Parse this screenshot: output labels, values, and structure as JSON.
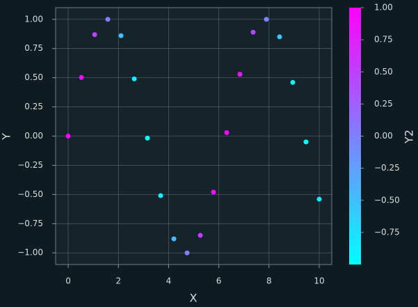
{
  "chart_data": {
    "type": "scatter",
    "xlabel": "X",
    "ylabel": "Y",
    "x": [
      0,
      0.526,
      1.053,
      1.579,
      2.105,
      2.632,
      3.158,
      3.684,
      4.211,
      4.737,
      5.263,
      5.789,
      6.316,
      6.842,
      7.368,
      7.895,
      8.421,
      8.947,
      9.474,
      10
    ],
    "values": [
      0,
      0.502,
      0.869,
      1.0,
      0.86,
      0.49,
      -0.017,
      -0.51,
      -0.88,
      -1.0,
      -0.85,
      -0.48,
      0.03,
      0.53,
      0.89,
      1.0,
      0.85,
      0.46,
      -0.05,
      -0.54
    ],
    "color_values": [
      1.0,
      0.865,
      0.495,
      -0.008,
      -0.51,
      -0.873,
      -1.0,
      -0.858,
      -0.481,
      0.024,
      0.524,
      0.88,
      0.999,
      0.848,
      0.467,
      -0.041,
      -0.537,
      -0.889,
      -0.999,
      -0.839
    ],
    "colormap": "cool",
    "xlim": [
      -0.5,
      10.5
    ],
    "ylim": [
      -1.1,
      1.1
    ],
    "xticks": [
      0,
      2,
      4,
      6,
      8,
      10
    ],
    "yticks": [
      {
        "value": -1,
        "label": "−1.00"
      },
      {
        "value": -0.75,
        "label": "−0.75"
      },
      {
        "value": -0.5,
        "label": "−0.50"
      },
      {
        "value": -0.25,
        "label": "−0.25"
      },
      {
        "value": 0,
        "label": "0.00"
      },
      {
        "value": 0.25,
        "label": "0.25"
      },
      {
        "value": 0.5,
        "label": "0.50"
      },
      {
        "value": 0.75,
        "label": "0.75"
      },
      {
        "value": 1,
        "label": "1.00"
      }
    ],
    "grid": true,
    "colorbar": {
      "label": "Y2",
      "clim": [
        -1,
        1
      ],
      "ticks": [
        {
          "value": -0.75,
          "label": "−0.75"
        },
        {
          "value": -0.5,
          "label": "−0.50"
        },
        {
          "value": -0.25,
          "label": "−0.25"
        },
        {
          "value": 0,
          "label": "0.00"
        },
        {
          "value": 0.25,
          "label": "0.25"
        },
        {
          "value": 0.5,
          "label": "0.50"
        },
        {
          "value": 0.75,
          "label": "0.75"
        },
        {
          "value": 1,
          "label": "1.00"
        }
      ]
    }
  }
}
